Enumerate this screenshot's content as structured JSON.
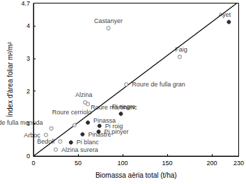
{
  "chart_data": {
    "type": "scatter",
    "x_label": "Biomassa aèria total (t/ha)",
    "y_label": "Índex d'àrea foliar m²/m²",
    "xlim": [
      0,
      230
    ],
    "xticks": [
      0,
      50,
      100,
      150,
      200
    ],
    "ylim": [
      0,
      4.7
    ],
    "yticks": [
      0,
      1,
      2,
      3,
      4
    ],
    "grid": false,
    "series": [
      {
        "type": "scatter",
        "marker": "filled",
        "color": "#000000",
        "labels": [
          "Ayet",
          "Pi negre",
          "Pinassa",
          "Pi roig",
          "Pi pinyer",
          "Pinastre",
          "Pi blanc"
        ],
        "x": [
          219,
          98,
          61,
          74,
          73,
          55,
          42
        ],
        "values": [
          4.12,
          1.3,
          1.03,
          0.93,
          0.75,
          0.67,
          0.42
        ]
      },
      {
        "type": "scatter",
        "marker": "open",
        "color": "#808080",
        "labels": [
          "Castanyer",
          "Faig",
          "Roure de fulla gran",
          "Alzina",
          "Roure martinenc",
          "Roure cerriolo",
          "Roure de fulla menuda",
          "Arboç",
          "Bedoll",
          "Alzina surera"
        ],
        "x": [
          84,
          164,
          104,
          58,
          61,
          46,
          20,
          14,
          30,
          25
        ],
        "values": [
          3.93,
          3.05,
          2.2,
          1.65,
          1.6,
          0.95,
          0.85,
          0.65,
          0.45,
          0.2
        ]
      },
      {
        "type": "line",
        "line_style": "solid",
        "color": "#000000",
        "x": [
          0,
          228
        ],
        "values": [
          0,
          4.7
        ]
      }
    ]
  }
}
